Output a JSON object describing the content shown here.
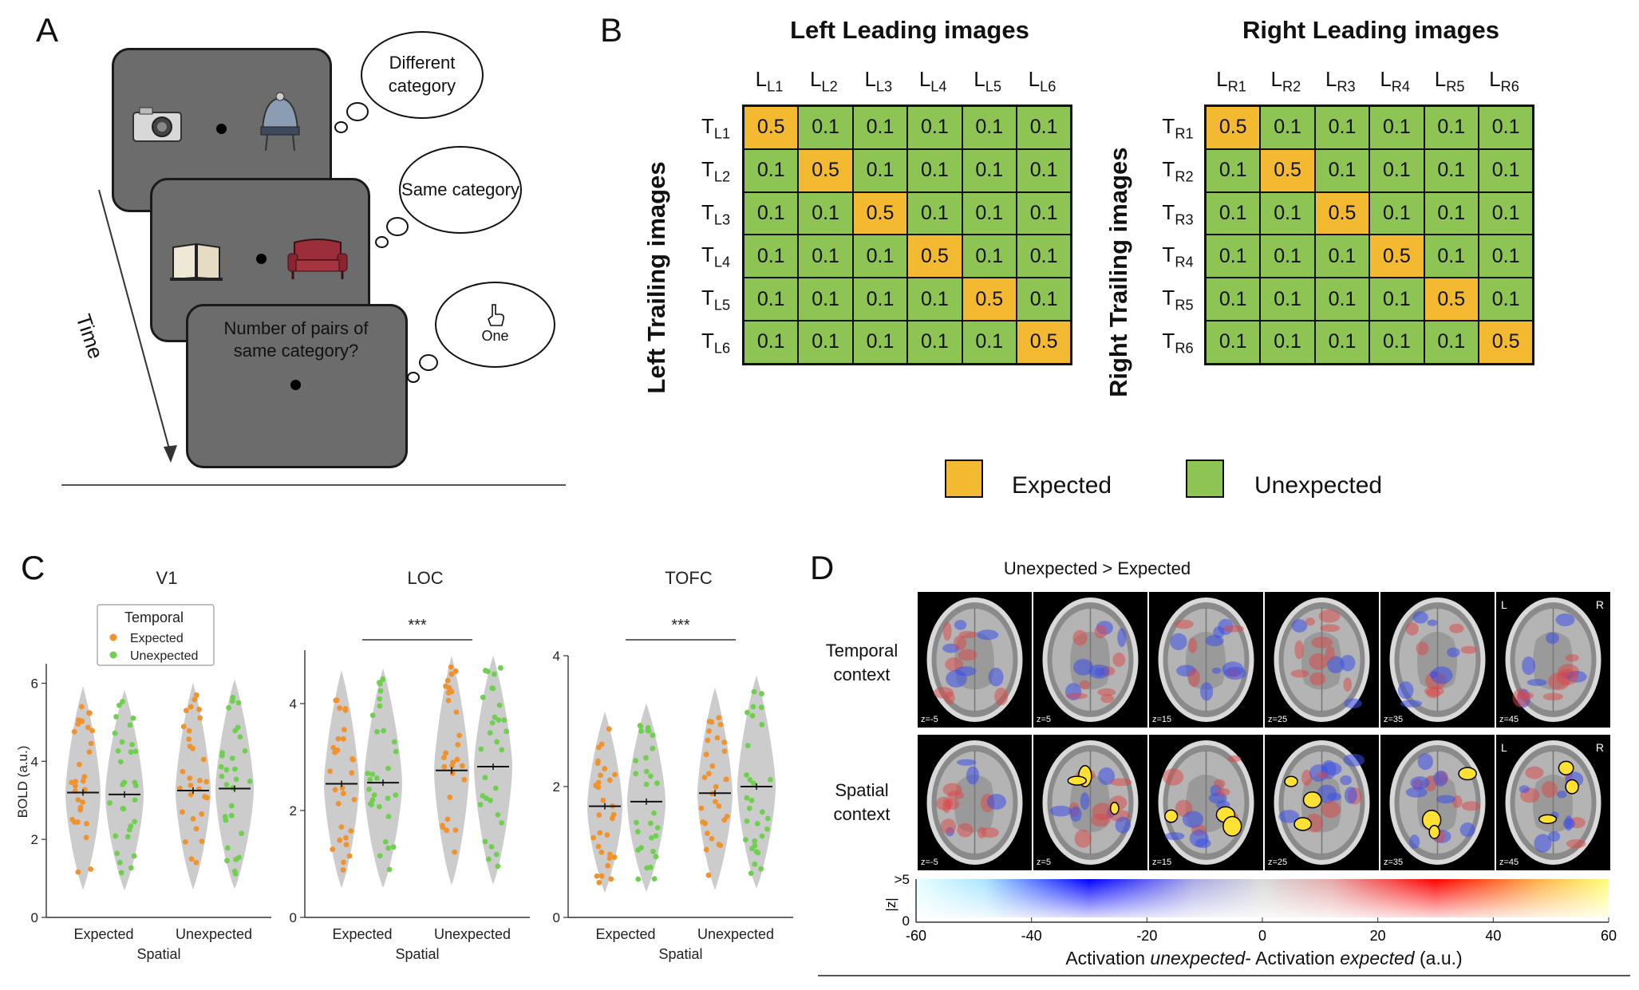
{
  "panels": {
    "a": "A",
    "b": "B",
    "c": "C",
    "d": "D"
  },
  "panelA": {
    "bubbles": [
      "Different category",
      "Same category",
      "One"
    ],
    "question": "Number of pairs of same category?",
    "time_label": "Time"
  },
  "panelB": {
    "left": {
      "title": "Left Leading images",
      "ylabel": "Left Trailing images",
      "cols": [
        {
          "main": "L",
          "sub": "L1"
        },
        {
          "main": "L",
          "sub": "L2"
        },
        {
          "main": "L",
          "sub": "L3"
        },
        {
          "main": "L",
          "sub": "L4"
        },
        {
          "main": "L",
          "sub": "L5"
        },
        {
          "main": "L",
          "sub": "L6"
        }
      ],
      "rows": [
        {
          "main": "T",
          "sub": "L1"
        },
        {
          "main": "T",
          "sub": "L2"
        },
        {
          "main": "T",
          "sub": "L3"
        },
        {
          "main": "T",
          "sub": "L4"
        },
        {
          "main": "T",
          "sub": "L5"
        },
        {
          "main": "T",
          "sub": "L6"
        }
      ]
    },
    "right": {
      "title": "Right Leading images",
      "ylabel": "Right Trailing images",
      "cols": [
        {
          "main": "L",
          "sub": "R1"
        },
        {
          "main": "L",
          "sub": "R2"
        },
        {
          "main": "L",
          "sub": "R3"
        },
        {
          "main": "L",
          "sub": "R4"
        },
        {
          "main": "L",
          "sub": "R5"
        },
        {
          "main": "L",
          "sub": "R6"
        }
      ],
      "rows": [
        {
          "main": "T",
          "sub": "R1"
        },
        {
          "main": "T",
          "sub": "R2"
        },
        {
          "main": "T",
          "sub": "R3"
        },
        {
          "main": "T",
          "sub": "R4"
        },
        {
          "main": "T",
          "sub": "R5"
        },
        {
          "main": "T",
          "sub": "R6"
        }
      ]
    },
    "diag_value": "0.5",
    "off_value": "0.1",
    "legend": {
      "expected": "Expected",
      "unexpected": "Unexpected"
    },
    "colors": {
      "expected": "#f3b931",
      "unexpected": "#8dc454"
    }
  },
  "panelC": {
    "legend_title": "Temporal",
    "legend_expected": "Expected",
    "legend_unexpected": "Unexpected",
    "ylabel": "BOLD (a.u.)",
    "xlabel": "Spatial",
    "xcats": [
      "Expected",
      "Unexpected"
    ],
    "colors": {
      "expected": "#f0922e",
      "unexpected": "#6fcf4f",
      "violin": "#cccccc"
    },
    "subplots": [
      {
        "title": "V1",
        "yticks": [
          "0",
          "2",
          "4",
          "6"
        ],
        "ymax": 6.5,
        "sig": "",
        "means": [
          3.2,
          3.15,
          3.25,
          3.3
        ]
      },
      {
        "title": "LOC",
        "yticks": [
          "0",
          "2",
          "4"
        ],
        "ymax": 5,
        "sig": "***",
        "means": [
          2.5,
          2.52,
          2.75,
          2.82
        ]
      },
      {
        "title": "TOFC",
        "yticks": [
          "0",
          "2",
          "4"
        ],
        "ymax": 4,
        "sig": "***",
        "means": [
          1.7,
          1.77,
          1.9,
          2.0
        ]
      }
    ]
  },
  "panelD": {
    "title": "Unexpected > Expected",
    "temporal_label": "Temporal context",
    "spatial_label": "Spatial context",
    "zlabels": [
      "z=-5",
      "z=5",
      "z=15",
      "z=25",
      "z=35",
      "z=45"
    ],
    "L": "L",
    "R": "R",
    "colorbar_ticks": [
      "-60",
      "-40",
      "-20",
      "0",
      "20",
      "40",
      "60"
    ],
    "colorbar_z_top": ">5",
    "colorbar_z_bottom": "0",
    "colorbar_z_label": "|z|",
    "xlabel_parts": [
      "Activation ",
      "unexpected",
      "- Activation ",
      "expected",
      " (a.u.)"
    ]
  }
}
